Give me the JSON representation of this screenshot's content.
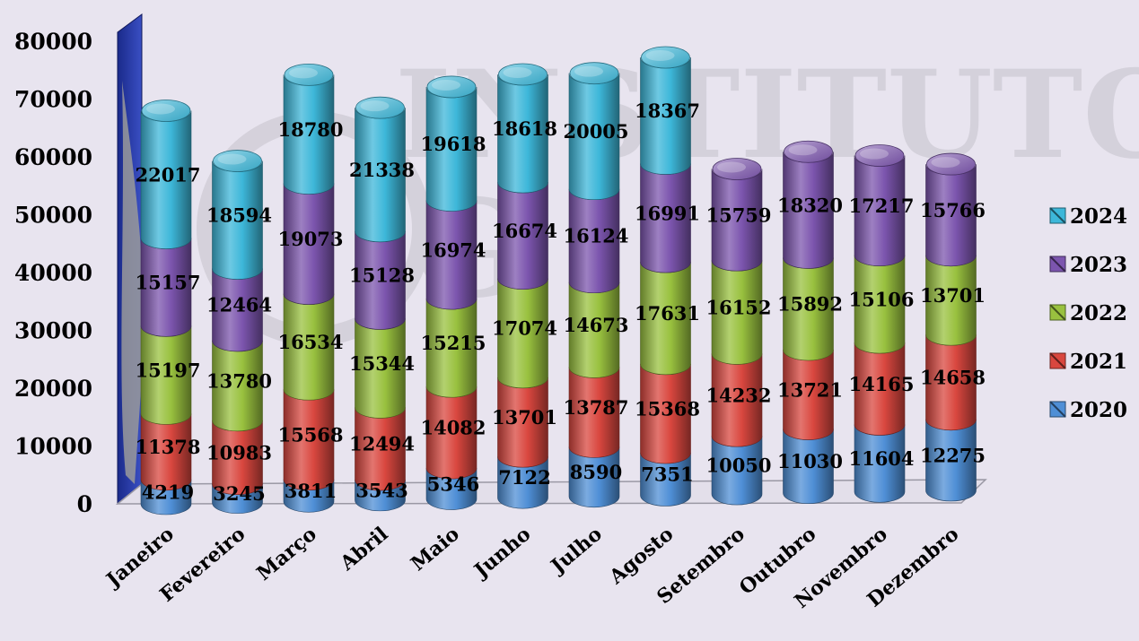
{
  "chart_data": {
    "type": "bar",
    "stacked": true,
    "style": "3d-cylinder",
    "title": "",
    "xlabel": "",
    "ylabel": "",
    "ylim": [
      0,
      80000
    ],
    "yticks": [
      0,
      10000,
      20000,
      30000,
      40000,
      50000,
      60000,
      70000,
      80000
    ],
    "grid": false,
    "legend_position": "right",
    "categories": [
      "Janeiro",
      "Fevereiro",
      "Março",
      "Abril",
      "Maio",
      "Junho",
      "Julho",
      "Agosto",
      "Setembro",
      "Outubro",
      "Novembro",
      "Dezembro"
    ],
    "series": [
      {
        "name": "2020",
        "color": "#4f8fd6",
        "values": [
          4219,
          3245,
          3811,
          3543,
          5346,
          7122,
          8590,
          7351,
          10050,
          11030,
          11604,
          12275
        ]
      },
      {
        "name": "2021",
        "color": "#d9473f",
        "values": [
          11378,
          10983,
          15568,
          12494,
          14082,
          13701,
          13787,
          15368,
          14232,
          13721,
          14165,
          14658
        ]
      },
      {
        "name": "2022",
        "color": "#99c13f",
        "values": [
          15197,
          13780,
          16534,
          15344,
          15215,
          17074,
          14673,
          17631,
          16152,
          15892,
          15106,
          13701
        ]
      },
      {
        "name": "2023",
        "color": "#7c55ae",
        "values": [
          15157,
          12464,
          19073,
          15128,
          16974,
          16674,
          16124,
          16991,
          15759,
          18320,
          17217,
          15766
        ]
      },
      {
        "name": "2024",
        "color": "#3db7d9",
        "values": [
          22017,
          18594,
          18780,
          21338,
          19618,
          18618,
          20005,
          18367,
          null,
          null,
          null,
          null
        ]
      }
    ]
  }
}
